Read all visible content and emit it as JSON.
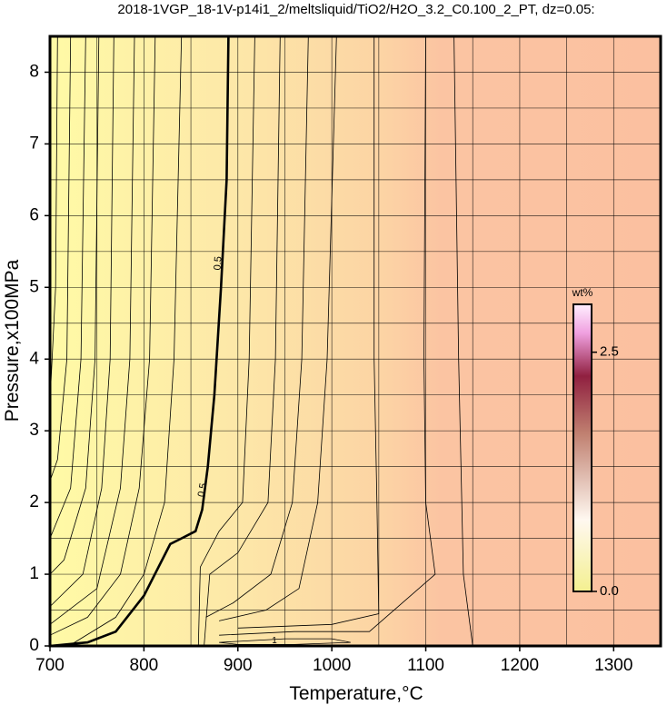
{
  "chart_data": {
    "type": "contour",
    "title": "2018-1VGP_18-1V-p14i1_2/meltsliquid/TiO2/H2O_3.2_C0.100_2_PT, dz=0.05:",
    "x_label": "Temperature,°C",
    "y_label": "Pressure,x100MPa",
    "xlim": [
      700,
      1350
    ],
    "ylim": [
      0,
      8.5
    ],
    "xticks": [
      700,
      800,
      900,
      1000,
      1100,
      1200,
      1300
    ],
    "yticks": [
      0,
      1,
      2,
      3,
      4,
      5,
      6,
      7,
      8
    ],
    "x_minor_grid": [
      750,
      850,
      950,
      1050,
      1150,
      1250
    ],
    "y_minor_grid": [
      0.5,
      1.5,
      2.5,
      3.5,
      4.5,
      5.5,
      6.5,
      7.5
    ],
    "grid": true,
    "contours": [
      {
        "x": [
          708,
          706,
          700
        ],
        "y": [
          8.5,
          5,
          3.4
        ]
      },
      {
        "x": [
          722,
          718,
          708,
          700
        ],
        "y": [
          8.5,
          4,
          2.6,
          2.3
        ]
      },
      {
        "x": [
          738,
          733,
          722,
          700
        ],
        "y": [
          8.5,
          4,
          2.2,
          1.5
        ]
      },
      {
        "x": [
          752,
          748,
          738,
          715,
          700
        ],
        "y": [
          8.5,
          4,
          2.2,
          1.2,
          1.0
        ]
      },
      {
        "x": [
          768,
          764,
          755,
          735,
          700
        ],
        "y": [
          8.5,
          4,
          2.2,
          1.0,
          0.55
        ]
      },
      {
        "x": [
          790,
          785,
          775,
          750,
          700
        ],
        "y": [
          8.5,
          4,
          2.2,
          0.8,
          0.3
        ]
      },
      {
        "x": [
          812,
          806,
          795,
          775,
          740,
          700
        ],
        "y": [
          8.5,
          4,
          2.2,
          1.0,
          0.4,
          0.15
        ]
      },
      {
        "x": [
          840,
          832,
          822,
          800,
          770,
          720
        ],
        "y": [
          8.5,
          4,
          2,
          1.0,
          0.4,
          0
        ]
      },
      {
        "level": 0.5,
        "bold": true,
        "x": [
          890,
          888,
          882,
          875,
          868,
          862,
          855,
          840,
          828,
          800,
          782,
          770,
          740,
          700
        ],
        "y": [
          8.5,
          6.5,
          5,
          3.5,
          2.5,
          1.9,
          1.6,
          1.5,
          1.42,
          0.7,
          0.4,
          0.2,
          0.05,
          0
        ]
      },
      {
        "x": [
          918,
          912,
          905,
          880,
          860,
          858
        ],
        "y": [
          8.5,
          4,
          2,
          1.6,
          1.1,
          0
        ]
      },
      {
        "x": [
          945,
          940,
          932,
          900,
          870,
          864
        ],
        "y": [
          8.5,
          4,
          2,
          1.3,
          1.0,
          0
        ]
      },
      {
        "x": [
          975,
          968,
          958,
          935,
          895,
          866
        ],
        "y": [
          8.5,
          4,
          2,
          1.0,
          0.6,
          0.4
        ]
      },
      {
        "x": [
          1005,
          995,
          985,
          965,
          930,
          880
        ],
        "y": [
          8.5,
          4,
          2,
          0.8,
          0.5,
          0.35
        ]
      },
      {
        "x": [
          1045,
          1045,
          1048,
          1050,
          1000,
          900
        ],
        "y": [
          8.5,
          4,
          2,
          0.45,
          0.3,
          0.25
        ]
      },
      {
        "x": [
          1100,
          1098,
          1100,
          1110,
          1040,
          960,
          880
        ],
        "y": [
          8.5,
          4,
          2,
          1,
          0.2,
          0.2,
          0.15
        ]
      },
      {
        "x": [
          1130,
          1135,
          1140,
          1150
        ],
        "y": [
          8.5,
          4,
          1,
          0
        ]
      },
      {
        "level": 1,
        "x": [
          880,
          950,
          1000,
          1020,
          960,
          900,
          880
        ],
        "y": [
          0.05,
          0.1,
          0.1,
          0.05,
          0.02,
          0.02,
          0.05
        ]
      }
    ],
    "colorbar": {
      "label": "wt%",
      "lim": [
        0,
        3
      ],
      "ticks": [
        {
          "value": 0,
          "label": "0.0"
        },
        {
          "value": 2.5,
          "label": "2.5"
        }
      ]
    }
  }
}
